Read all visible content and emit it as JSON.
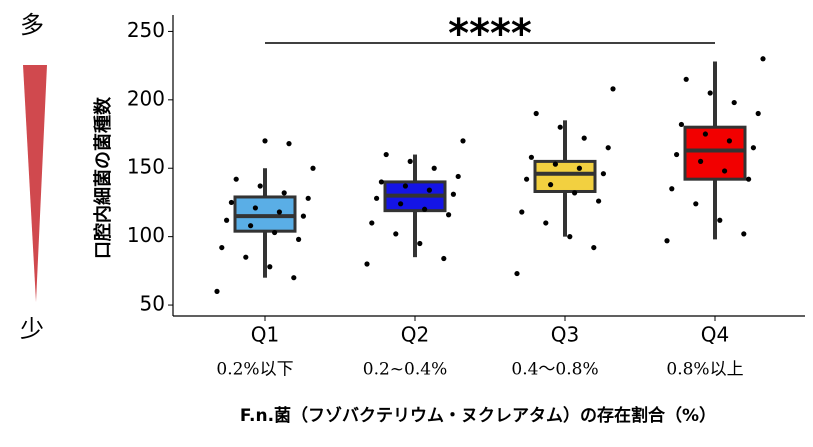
{
  "chart_data": {
    "type": "box",
    "side_labels": {
      "top": "多",
      "bottom": "少"
    },
    "y_label": "口腔内細菌の菌種数",
    "x_label": "F.n.菌（フゾバクテリウム・ヌクレアタム）の存在割合（%）",
    "categories": [
      "Q1",
      "Q2",
      "Q3",
      "Q4"
    ],
    "sublabels": [
      "0.2%以下",
      "0.2~0.4%",
      "0.4～0.8%",
      "0.8%以上"
    ],
    "significance": "****",
    "ylim": [
      42,
      262
    ],
    "yticks": [
      50,
      100,
      150,
      200,
      250
    ],
    "grid": false,
    "series": [
      {
        "name": "Q1",
        "color": "#5aaee6",
        "min": 70,
        "q1": 104,
        "median": 115,
        "q3": 129,
        "max": 150,
        "points": [
          60,
          70,
          78,
          85,
          92,
          98,
          103,
          108,
          112,
          115,
          118,
          121,
          125,
          128,
          132,
          137,
          142,
          150,
          168,
          170
        ]
      },
      {
        "name": "Q2",
        "color": "#1414e6",
        "min": 85,
        "q1": 119,
        "median": 130,
        "q3": 140,
        "max": 160,
        "points": [
          80,
          84,
          95,
          102,
          110,
          116,
          120,
          124,
          128,
          131,
          134,
          137,
          140,
          144,
          150,
          155,
          160,
          170
        ]
      },
      {
        "name": "Q3",
        "color": "#f2d040",
        "min": 100,
        "q1": 133,
        "median": 146,
        "q3": 155,
        "max": 185,
        "points": [
          73,
          92,
          100,
          110,
          118,
          126,
          132,
          138,
          142,
          146,
          150,
          153,
          158,
          165,
          172,
          180,
          190,
          208
        ]
      },
      {
        "name": "Q4",
        "color": "#f20000",
        "min": 98,
        "q1": 142,
        "median": 163,
        "q3": 180,
        "max": 228,
        "points": [
          97,
          102,
          112,
          124,
          135,
          142,
          148,
          155,
          160,
          165,
          170,
          175,
          182,
          190,
          198,
          205,
          215,
          230
        ]
      }
    ]
  }
}
